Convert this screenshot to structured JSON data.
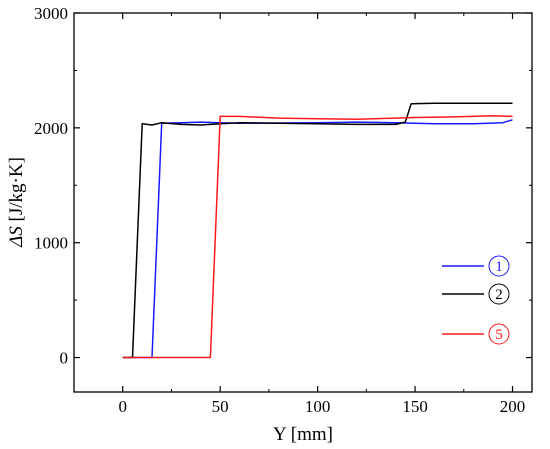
{
  "chart_data": {
    "type": "line",
    "title": "",
    "xlabel": "Y [mm]",
    "ylabel_italic": "ΔS",
    "ylabel_unit": " [J/kg·K]",
    "xlim": [
      -25,
      210
    ],
    "ylim": [
      -300,
      3000
    ],
    "xticks": [
      0,
      50,
      100,
      150,
      200
    ],
    "yticks": [
      0,
      1000,
      2000,
      3000
    ],
    "xtick_labels": [
      "0",
      "50",
      "100",
      "150",
      "200"
    ],
    "ytick_labels": [
      "0",
      "1000",
      "2000",
      "3000"
    ],
    "grid": false,
    "legend_position": "right",
    "series": [
      {
        "name": "1",
        "color": "#1a1aff",
        "points": [
          [
            0,
            0
          ],
          [
            15,
            0
          ],
          [
            20,
            2040
          ],
          [
            30,
            2045
          ],
          [
            40,
            2050
          ],
          [
            50,
            2045
          ],
          [
            60,
            2040
          ],
          [
            80,
            2042
          ],
          [
            100,
            2045
          ],
          [
            120,
            2050
          ],
          [
            140,
            2045
          ],
          [
            150,
            2040
          ],
          [
            160,
            2035
          ],
          [
            180,
            2035
          ],
          [
            195,
            2045
          ],
          [
            200,
            2070
          ]
        ]
      },
      {
        "name": "2",
        "color": "#000000",
        "points": [
          [
            0,
            0
          ],
          [
            5,
            0
          ],
          [
            10,
            2035
          ],
          [
            15,
            2025
          ],
          [
            20,
            2045
          ],
          [
            30,
            2030
          ],
          [
            40,
            2025
          ],
          [
            50,
            2035
          ],
          [
            60,
            2045
          ],
          [
            80,
            2040
          ],
          [
            100,
            2035
          ],
          [
            120,
            2030
          ],
          [
            140,
            2030
          ],
          [
            145,
            2050
          ],
          [
            148,
            2210
          ],
          [
            160,
            2215
          ],
          [
            200,
            2215
          ]
        ]
      },
      {
        "name": "5",
        "color": "#ff1a1a",
        "points": [
          [
            0,
            0
          ],
          [
            45,
            0
          ],
          [
            50,
            2100
          ],
          [
            60,
            2100
          ],
          [
            80,
            2085
          ],
          [
            100,
            2080
          ],
          [
            120,
            2075
          ],
          [
            140,
            2085
          ],
          [
            150,
            2090
          ],
          [
            170,
            2095
          ],
          [
            190,
            2105
          ],
          [
            200,
            2100
          ]
        ]
      }
    ]
  }
}
